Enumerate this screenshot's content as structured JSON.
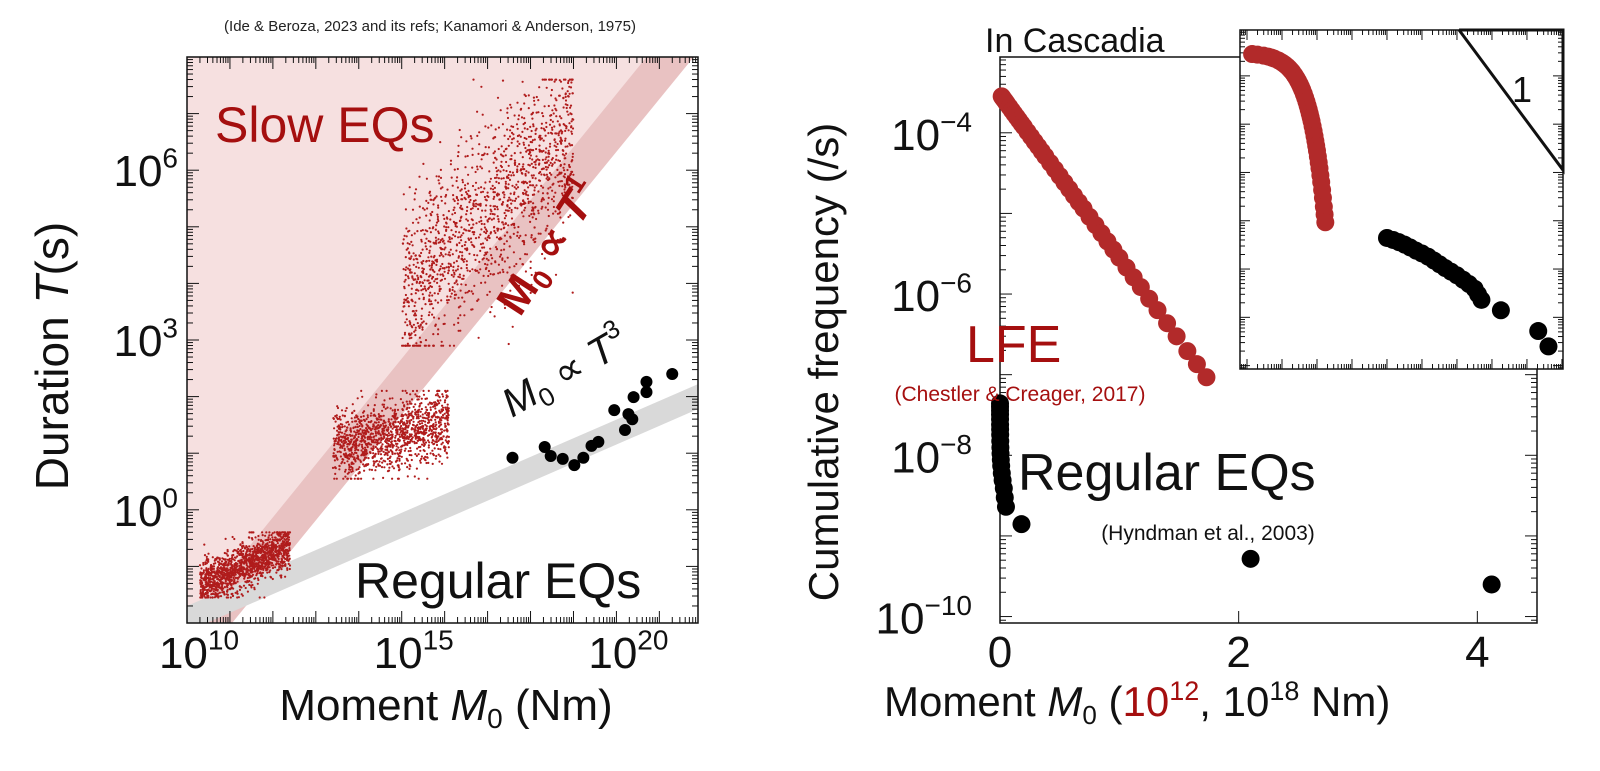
{
  "colors": {
    "slow_eq": "#b01c1c",
    "slow_text": "#a50f0f",
    "slow_region": "#f6e0e0",
    "slow_band": "#e5b7b7",
    "regular_band": "#d9d9d9",
    "regular_eq": "#000000",
    "lfe": "#b22a2a"
  },
  "chart_data": [
    {
      "type": "scatter",
      "title": "(Ide & Beroza, 2023 and its refs; Kanamori & Anderson, 1975)",
      "xlabel": {
        "text": "Moment ",
        "var": "M",
        "sub": "0",
        "unit": " (Nm)"
      },
      "ylabel": {
        "text": "Duration  ",
        "var": "T",
        "unit": "(s)"
      },
      "xscale": "log",
      "yscale": "log",
      "xlim_log10": [
        10,
        21.9
      ],
      "ylim_log10": [
        -2,
        8
      ],
      "x_tick_exponents": [
        "10",
        "15",
        "20"
      ],
      "y_tick_exponents": [
        "0",
        "3",
        "6"
      ],
      "tick_base": "10",
      "grid": false,
      "annotations": {
        "slow_label": "Slow EQs",
        "regular_label": "Regular EQs",
        "slow_scaling": {
          "m": "M",
          "sub": "0",
          "prop": " ∝ ",
          "t": "T",
          "exp": "1"
        },
        "regular_scaling": {
          "m": "M",
          "sub": "0",
          "prop": " ∝ ",
          "t": "T",
          "exp": "3"
        }
      },
      "bands": {
        "slow_M0_prop_T1": {
          "upper_edge": [
            [
              10,
              -2
            ],
            [
              20.7,
              8
            ]
          ],
          "lower_edge": [
            [
              11.05,
              -2
            ],
            [
              21.8,
              8
            ]
          ]
        },
        "regular_M0_prop_T3": {
          "upper_edge": [
            [
              10,
              -1.7
            ],
            [
              21.9,
              2.22
            ]
          ],
          "lower_edge": [
            [
              10,
              -2.15
            ],
            [
              21.9,
              1.78
            ]
          ]
        }
      },
      "slow_eq_groups": [
        {
          "M0_log10_range": [
            10.3,
            12.4
          ],
          "T_log10_range": [
            -1.55,
            -0.4
          ],
          "count": 1400
        },
        {
          "M0_log10_range": [
            13.4,
            16.1
          ],
          "T_log10_range": [
            0.55,
            2.1
          ],
          "count": 1300
        },
        {
          "M0_log10_range": [
            15.0,
            19.0
          ],
          "T_log10_range": [
            2.9,
            7.6
          ],
          "count": 1500
        }
      ],
      "regular_eqs_log10": [
        [
          17.58,
          0.92
        ],
        [
          18.33,
          1.11
        ],
        [
          18.47,
          0.95
        ],
        [
          18.75,
          0.9
        ],
        [
          19.02,
          0.79
        ],
        [
          19.23,
          0.92
        ],
        [
          19.42,
          1.13
        ],
        [
          19.58,
          1.2
        ],
        [
          19.95,
          1.76
        ],
        [
          20.2,
          1.41
        ],
        [
          20.28,
          1.69
        ],
        [
          20.37,
          1.6
        ],
        [
          20.4,
          1.99
        ],
        [
          20.7,
          2.26
        ],
        [
          20.7,
          2.08
        ],
        [
          21.3,
          2.4
        ]
      ]
    },
    {
      "type": "scatter",
      "ylabel": "Cumulative frequency (/s)",
      "xlabel": {
        "text": "Moment ",
        "var": "M",
        "sub": "0",
        "open": " (",
        "lfe_unit": "10",
        "lfe_exp": "12",
        "sep": ", 10",
        "eq_exp": "18",
        "close": " Nm)"
      },
      "xscale": "linear",
      "yscale": "log",
      "xlim": [
        0,
        4.5
      ],
      "ylim_log10": [
        -10.08,
        -3.06
      ],
      "x_ticks": [
        "0",
        "2",
        "4"
      ],
      "y_tick_exponents": [
        "−4",
        "−6",
        "−8",
        "−10"
      ],
      "tick_base": "10",
      "region_label": "In Cascadia",
      "series": [
        {
          "name": "LFE",
          "citation": "(Chestler & Creager, 2017)",
          "x_unit_Nm": 1000000000000.0,
          "x": [
            0.014,
            0.02,
            0.03,
            0.04,
            0.05,
            0.06,
            0.08,
            0.1,
            0.12,
            0.14,
            0.16,
            0.18,
            0.2,
            0.23,
            0.26,
            0.29,
            0.32,
            0.35,
            0.38,
            0.42,
            0.46,
            0.5,
            0.54,
            0.58,
            0.62,
            0.66,
            0.7,
            0.75,
            0.8,
            0.85,
            0.9,
            0.95,
            1.0,
            1.06,
            1.12,
            1.18,
            1.25,
            1.32,
            1.4,
            1.48,
            1.57,
            1.65,
            1.73
          ],
          "y": [
            0.000283,
            0.000275,
            0.000262,
            0.000251,
            0.000239,
            0.000228,
            0.000208,
            0.000189,
            0.000172,
            0.000157,
            0.000143,
            0.00013,
            0.000119,
            0.000103,
            8.95e-05,
            7.78e-05,
            6.77e-05,
            5.88e-05,
            5.11e-05,
            4.24e-05,
            3.52e-05,
            2.92e-05,
            2.42e-05,
            2.01e-05,
            1.66e-05,
            1.38e-05,
            1.15e-05,
            9.06e-06,
            7.18e-06,
            5.68e-06,
            4.5e-06,
            3.56e-06,
            2.82e-06,
            2.13e-06,
            1.61e-06,
            1.22e-06,
            8.75e-07,
            6.31e-07,
            4.35e-07,
            2.99e-07,
            1.96e-07,
            1.35e-07,
            9.29e-08
          ]
        },
        {
          "name": "Regular EQs",
          "citation": "(Hyndman et al., 2003)",
          "x_unit_Nm": 1e+18,
          "x": [
            0.0001,
            0.00015,
            0.00022,
            0.00032,
            0.00046,
            0.00068,
            0.001,
            0.0015,
            0.0022,
            0.0032,
            0.0046,
            0.0068,
            0.01,
            0.015,
            0.022,
            0.032,
            0.04,
            0.05,
            0.18,
            2.1,
            4.12
          ],
          "y": [
            4.4e-08,
            4e-08,
            3.6e-08,
            3.2e-08,
            2.8e-08,
            2.4e-08,
            2.1e-08,
            1.8e-08,
            1.5e-08,
            1.25e-08,
            1.05e-08,
            8.8e-09,
            7.4e-09,
            6e-09,
            4.9e-09,
            3.9e-09,
            3e-09,
            2.3e-09,
            1.4e-09,
            5.2e-10,
            2.5e-10
          ]
        }
      ],
      "inset": {
        "xscale": "log",
        "yscale": "log",
        "xlim_log10_Nm": [
          9.8,
          19.03
        ],
        "ylim_log10": [
          -10.07,
          -3.05
        ],
        "slope_triangle": {
          "label": "1",
          "slope": -1,
          "vertices_log10": [
            [
              16.06,
              -3.05
            ],
            [
              19.03,
              -3.05
            ],
            [
              19.03,
              -5.95
            ]
          ]
        }
      }
    }
  ]
}
